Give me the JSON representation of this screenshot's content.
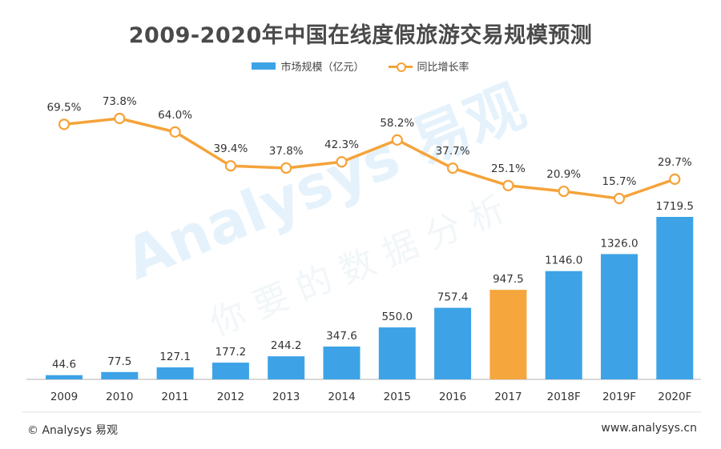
{
  "chart_data": {
    "type": "bar",
    "title": "2009-2020年中国在线度假旅游交易规模预测",
    "categories": [
      "2009",
      "2010",
      "2011",
      "2012",
      "2013",
      "2014",
      "2015",
      "2016",
      "2017",
      "2018F",
      "2019F",
      "2020F"
    ],
    "series": [
      {
        "name": "市场规模（亿元）",
        "type": "bar",
        "values": [
          44.6,
          77.5,
          127.1,
          177.2,
          244.2,
          347.6,
          550.0,
          757.4,
          947.5,
          1146.0,
          1326.0,
          1719.5
        ],
        "value_labels": [
          "44.6",
          "77.5",
          "127.1",
          "177.2",
          "244.2",
          "347.6",
          "550.0",
          "757.4",
          "947.5",
          "1146.0",
          "1326.0",
          "1719.5"
        ],
        "color": "#3DA3E6",
        "highlight_index": 8,
        "highlight_color": "#F5A63C"
      },
      {
        "name": "同比增长率",
        "type": "line",
        "values": [
          69.5,
          73.8,
          64.0,
          39.4,
          37.8,
          42.3,
          58.2,
          37.7,
          25.1,
          20.9,
          15.7,
          29.7
        ],
        "value_labels": [
          "69.5%",
          "73.8%",
          "64.0%",
          "39.4%",
          "37.8%",
          "42.3%",
          "58.2%",
          "37.7%",
          "25.1%",
          "20.9%",
          "15.7%",
          "29.7%"
        ],
        "color": "#F5A33A"
      }
    ],
    "legend_position": "top-center",
    "grid": false
  },
  "watermark": {
    "brand": "Analysys 易观",
    "tagline": "你要的数据分析"
  },
  "footer": {
    "left": "© Analysys 易观",
    "right": "www.analysys.cn"
  }
}
